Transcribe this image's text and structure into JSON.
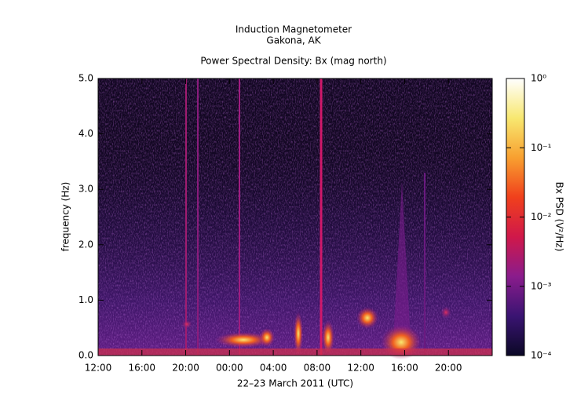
{
  "chart_data": {
    "type": "spectrogram",
    "title": "Induction Magnetometer",
    "subtitle": "Gakona, AK",
    "plot_title": "Power Spectral Density: Bx (mag north)",
    "x_label": "22–23 March 2011 (UTC)",
    "y_label": "frequency (Hz)",
    "xlim": [
      0,
      36
    ],
    "xticks": [
      {
        "value": 0,
        "label": "12:00"
      },
      {
        "value": 4,
        "label": "16:00"
      },
      {
        "value": 8,
        "label": "20:00"
      },
      {
        "value": 12,
        "label": "00:00"
      },
      {
        "value": 16,
        "label": "04:00"
      },
      {
        "value": 20,
        "label": "08:00"
      },
      {
        "value": 24,
        "label": "12:00"
      },
      {
        "value": 28,
        "label": "16:00"
      },
      {
        "value": 32,
        "label": "20:00"
      }
    ],
    "ylim": [
      0,
      5
    ],
    "yticks": [
      {
        "value": 0,
        "label": "0.0"
      },
      {
        "value": 1,
        "label": "1.0"
      },
      {
        "value": 2,
        "label": "2.0"
      },
      {
        "value": 3,
        "label": "3.0"
      },
      {
        "value": 4,
        "label": "4.0"
      },
      {
        "value": 5,
        "label": "5.0"
      }
    ],
    "colorbar": {
      "label": "Bx PSD (V²/Hz)",
      "log": true,
      "lim": [
        0.0001,
        1
      ],
      "ticks": [
        {
          "value": 0.0001,
          "label": "10⁻⁴"
        },
        {
          "value": 0.001,
          "label": "10⁻³"
        },
        {
          "value": 0.01,
          "label": "10⁻²"
        },
        {
          "value": 0.1,
          "label": "10⁻¹"
        },
        {
          "value": 1,
          "label": "10⁰"
        }
      ],
      "colors": [
        "#0b0826",
        "#3a1472",
        "#8a1c8c",
        "#d0184a",
        "#f0401c",
        "#f8a030",
        "#f8e870",
        "#ffffff"
      ]
    }
  }
}
